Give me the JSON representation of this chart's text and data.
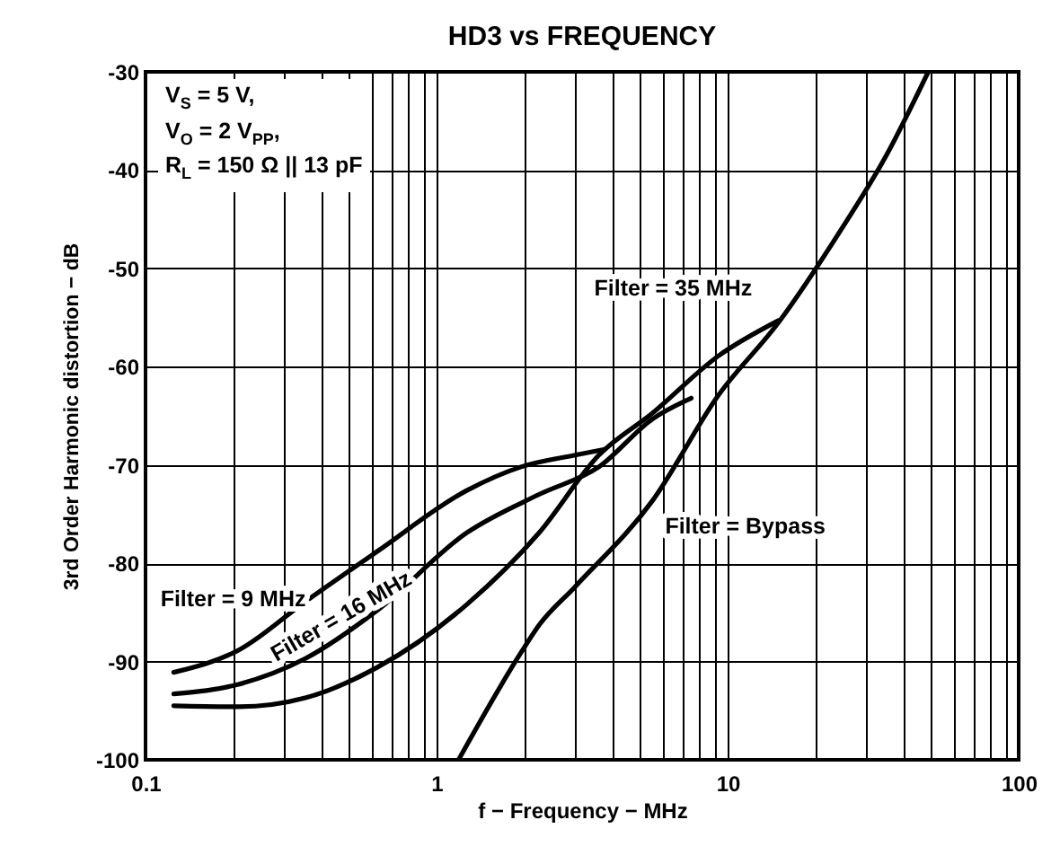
{
  "chart_data": {
    "type": "line",
    "title": "HD3 vs FREQUENCY",
    "xlabel": "f − Frequency − MHz",
    "ylabel": "3rd Order Harmonic distortion − dB",
    "annotations": [
      "V$_{S}$ = 5 V,",
      "V$_{O}$ = 2 V$_{PP}$,",
      "R$_{L}$ = 150 Ω || 13 pF"
    ],
    "log": "x",
    "grid": true,
    "xlim": [
      0.1,
      100
    ],
    "xticks": [
      0.1,
      {
        "value": 0.2,
        "label": null
      },
      {
        "value": 0.3,
        "label": null
      },
      {
        "value": 0.4,
        "label": null
      },
      {
        "value": 0.5,
        "label": null
      },
      {
        "value": 0.6,
        "label": null
      },
      {
        "value": 0.7,
        "label": null
      },
      {
        "value": 0.8,
        "label": null
      },
      {
        "value": 0.9,
        "label": null
      },
      1,
      {
        "value": 2,
        "label": null
      },
      {
        "value": 3,
        "label": null
      },
      {
        "value": 4,
        "label": null
      },
      {
        "value": 5,
        "label": null
      },
      {
        "value": 6,
        "label": null
      },
      {
        "value": 7,
        "label": null
      },
      {
        "value": 8,
        "label": null
      },
      {
        "value": 9,
        "label": null
      },
      10,
      {
        "value": 20,
        "label": null
      },
      {
        "value": 30,
        "label": null
      },
      {
        "value": 40,
        "label": null
      },
      {
        "value": 50,
        "label": null
      },
      {
        "value": 60,
        "label": null
      },
      {
        "value": 70,
        "label": null
      },
      {
        "value": 80,
        "label": null
      },
      {
        "value": 90,
        "label": null
      },
      100
    ],
    "ylim": [
      -100,
      -30
    ],
    "yticks": [
      -100,
      -90,
      -80,
      -70,
      -60,
      -50,
      -40,
      -30
    ],
    "series": [
      {
        "name": "Filter = 9 MHz",
        "color": "#000000",
        "x": [
          0.125,
          0.21,
          0.354,
          0.625,
          1.27,
          1.95,
          2.99,
          3.79
        ],
        "values": [
          -91.1,
          -88.8,
          -83.9,
          -78.8,
          -72.6,
          -70.2,
          -69.0,
          -68.4
        ]
      },
      {
        "name": "Filter = 16 MHz",
        "color": "#000000",
        "x": [
          0.125,
          0.21,
          0.354,
          0.625,
          1.27,
          2.25,
          3.61,
          5.53,
          7.5
        ],
        "values": [
          -93.3,
          -92.3,
          -89.7,
          -84.8,
          -76.9,
          -73.0,
          -70.2,
          -65.3,
          -63.2
        ]
      },
      {
        "name": "Filter = 35 MHz",
        "color": "#000000",
        "x": [
          0.125,
          0.21,
          0.354,
          0.625,
          1.27,
          2.25,
          3.61,
          5.53,
          9.3,
          14.96
        ],
        "values": [
          -94.5,
          -94.6,
          -93.7,
          -90.6,
          -84.2,
          -76.9,
          -69.0,
          -64.7,
          -58.9,
          -55.3
        ]
      },
      {
        "name": "Filter = Bypass",
        "color": "#000000",
        "x": [
          1.19,
          1.95,
          2.25,
          2.99,
          5.53,
          9.3,
          14.96,
          24.0,
          35.1,
          48.9
        ],
        "values": [
          -100,
          -89.1,
          -86.3,
          -82.4,
          -73.6,
          -62.9,
          -55.5,
          -46.5,
          -38.5,
          -30
        ]
      }
    ]
  }
}
